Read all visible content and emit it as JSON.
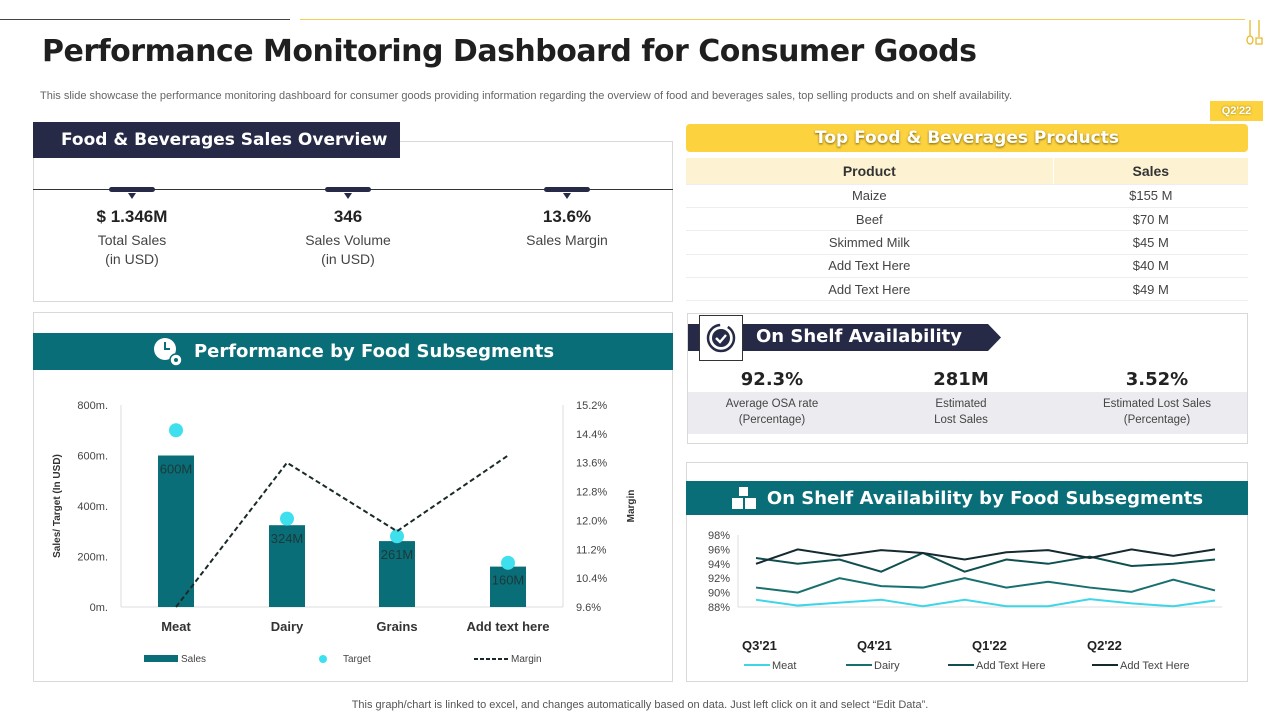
{
  "header": {
    "title": "Performance Monitoring Dashboard for Consumer Goods",
    "subtitle": "This slide showcase the performance monitoring dashboard for consumer goods providing information regarding the overview of food and beverages  sales, top selling products and on shelf availability.",
    "period_badge": "Q2'22"
  },
  "sales_overview": {
    "title": "Food & Beverages Sales Overview",
    "kpis": [
      {
        "value": "$ 1.346M",
        "label1": "Total Sales",
        "label2": "(in USD)"
      },
      {
        "value": "346",
        "label1": "Sales Volume",
        "label2": "(in USD)"
      },
      {
        "value": "13.6%",
        "label1": "Sales Margin",
        "label2": ""
      }
    ]
  },
  "top_products": {
    "title": "Top Food & Beverages Products",
    "columns": [
      "Product",
      "Sales"
    ],
    "rows": [
      [
        "Maize",
        "$155 M"
      ],
      [
        "Beef",
        "$70 M"
      ],
      [
        "Skimmed Milk",
        "$45 M"
      ],
      [
        "Add Text Here",
        "$40 M"
      ],
      [
        "Add Text Here",
        "$49 M"
      ]
    ]
  },
  "osa": {
    "title": "On Shelf Availability",
    "icon": "check-circle-icon",
    "kpis": [
      {
        "value": "92.3%",
        "label1": "Average OSA rate",
        "label2": "(Percentage)"
      },
      {
        "value": "281M",
        "label1": "Estimated",
        "label2": "Lost Sales"
      },
      {
        "value": "3.52%",
        "label1": "Estimated Lost Sales",
        "label2": "(Percentage)"
      }
    ]
  },
  "perf": {
    "title": "Performance by Food Subsegments",
    "icon": "clock-gear-icon"
  },
  "osa_chart": {
    "title": "On Shelf Availability by Food Subsegments",
    "icon": "boxes-icon"
  },
  "colors": {
    "navy": "#262a46",
    "teal": "#0a6e78",
    "yellow": "#fcd23f",
    "cyan": "#3ee0ee"
  },
  "footer": "This graph/chart is linked to excel, and changes automatically based on data. Just left click on it and select “Edit Data”.",
  "chart_data": [
    {
      "type": "bar",
      "categories": [
        "Meat",
        "Dairy",
        "Grains",
        "Add text here"
      ],
      "ylabel": "Sales/ Target  (In USD)",
      "y2label": "Margin",
      "yticks": [
        "0m.",
        "200m.",
        "400m.",
        "600m.",
        "800m."
      ],
      "ylim": [
        0,
        800
      ],
      "y2ticks": [
        "9.6%",
        "10.4%",
        "11.2%",
        "12.0%",
        "12.8%",
        "13.6%",
        "14.4%",
        "15.2%"
      ],
      "y2lim": [
        9.6,
        15.2
      ],
      "series": [
        {
          "name": "Sales",
          "kind": "bar",
          "values": [
            600,
            324,
            261,
            160
          ],
          "labels": [
            "600M",
            "324M",
            "261M",
            "160M"
          ],
          "color": "#0a6e78"
        },
        {
          "name": "Target",
          "kind": "dot",
          "values": [
            700,
            350,
            280,
            175
          ],
          "color": "#3ee0ee"
        },
        {
          "name": "Margin",
          "kind": "dashed-line",
          "axis": "right",
          "values": [
            9.6,
            13.6,
            11.7,
            13.8
          ],
          "color": "#1a2a2a"
        }
      ],
      "legend": "bottom"
    },
    {
      "type": "line",
      "xticks": [
        "Q3'21",
        "Q4'21",
        "Q1'22",
        "Q2'22"
      ],
      "yticks": [
        "88%",
        "90%",
        "92%",
        "94%",
        "96%",
        "98%"
      ],
      "ylim": [
        88,
        98
      ],
      "series": [
        {
          "name": "Meat",
          "color": "#3ed6e6",
          "values": [
            89,
            88.2,
            88.6,
            89,
            88.1,
            89,
            88.1,
            88.1,
            89.1,
            88.5,
            88.1,
            88.9
          ]
        },
        {
          "name": "Dairy",
          "color": "#17706f",
          "values": [
            90.7,
            90,
            92,
            90.9,
            90.7,
            92,
            90.7,
            91.5,
            90.7,
            90.1,
            91.8,
            90.3
          ]
        },
        {
          "name": "Add Text Here",
          "color": "#0f4f4f",
          "values": [
            94.8,
            94,
            94.6,
            92.9,
            95.5,
            92.9,
            94.6,
            94,
            95,
            93.7,
            94,
            94.6
          ]
        },
        {
          "name": "Add Text Here",
          "color": "#142a30",
          "values": [
            94,
            96,
            95.1,
            95.9,
            95.5,
            94.6,
            95.6,
            95.9,
            94.8,
            96,
            95.1,
            96
          ]
        }
      ],
      "legend": "bottom"
    }
  ]
}
